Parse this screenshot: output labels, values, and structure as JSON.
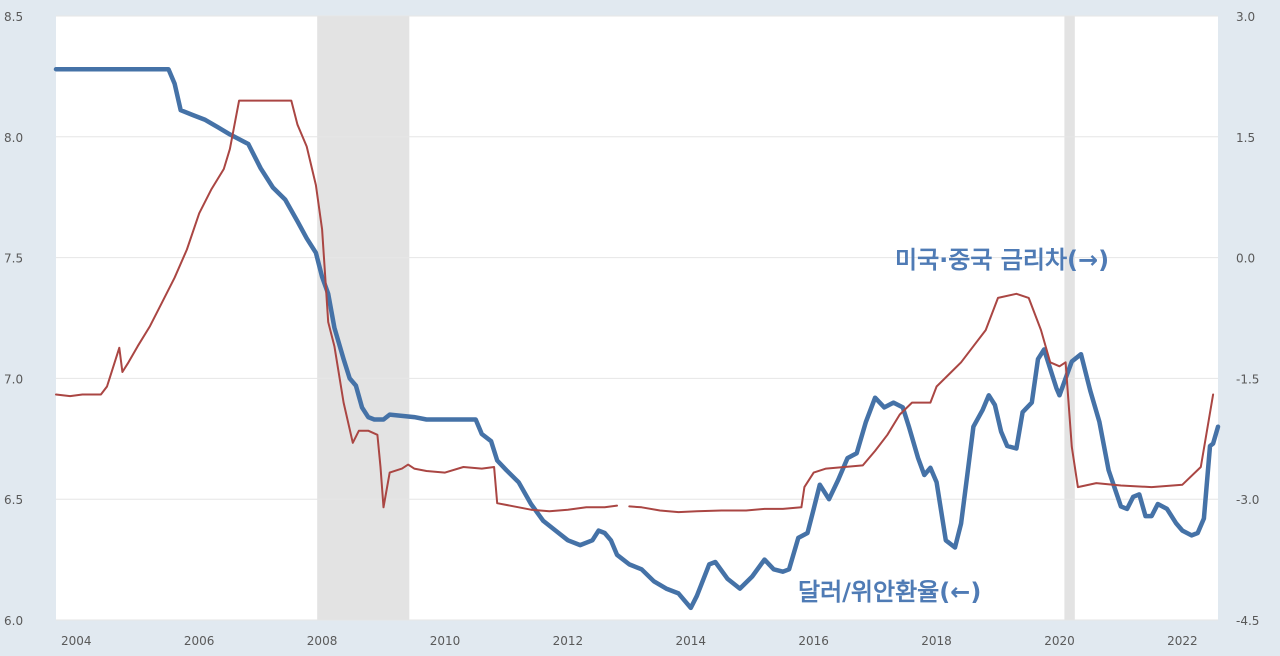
{
  "chart_data": {
    "type": "line",
    "x_axis": {
      "min": 2003.67,
      "max": 2022.58,
      "ticks": [
        "2004",
        "2006",
        "2008",
        "2010",
        "2012",
        "2014",
        "2016",
        "2018",
        "2020",
        "2022"
      ]
    },
    "y_left": {
      "min": 6.0,
      "max": 8.5,
      "ticks": [
        "6.0",
        "6.5",
        "7.0",
        "7.5",
        "8.0",
        "8.5"
      ]
    },
    "y_right": {
      "min": -4.5,
      "max": 3.0,
      "ticks": [
        "-4.5",
        "-3.0",
        "-1.5",
        "0.0",
        "1.5",
        "3.0"
      ]
    },
    "grid": true,
    "recession_bands": [
      [
        2007.92,
        2009.42
      ],
      [
        2020.08,
        2020.25
      ]
    ],
    "annotations": {
      "rate_gap": "미국·중국 금리차(→)",
      "fx": "달러/위안환율(←)"
    },
    "series": [
      {
        "name": "달러/위안환율(←)",
        "axis": "left",
        "color": "#4572a7",
        "points": [
          [
            2003.67,
            8.28
          ],
          [
            2005.5,
            8.28
          ],
          [
            2005.6,
            8.22
          ],
          [
            2005.7,
            8.11
          ],
          [
            2005.9,
            8.09
          ],
          [
            2006.1,
            8.07
          ],
          [
            2006.3,
            8.04
          ],
          [
            2006.5,
            8.01
          ],
          [
            2006.8,
            7.97
          ],
          [
            2007.0,
            7.87
          ],
          [
            2007.2,
            7.79
          ],
          [
            2007.4,
            7.74
          ],
          [
            2007.6,
            7.65
          ],
          [
            2007.75,
            7.58
          ],
          [
            2007.9,
            7.52
          ],
          [
            2008.0,
            7.42
          ],
          [
            2008.1,
            7.35
          ],
          [
            2008.2,
            7.21
          ],
          [
            2008.35,
            7.08
          ],
          [
            2008.45,
            7.0
          ],
          [
            2008.55,
            6.97
          ],
          [
            2008.65,
            6.88
          ],
          [
            2008.75,
            6.84
          ],
          [
            2008.85,
            6.83
          ],
          [
            2009.0,
            6.83
          ],
          [
            2009.1,
            6.85
          ],
          [
            2009.5,
            6.84
          ],
          [
            2009.7,
            6.83
          ],
          [
            2010.5,
            6.83
          ],
          [
            2010.6,
            6.77
          ],
          [
            2010.75,
            6.74
          ],
          [
            2010.85,
            6.66
          ],
          [
            2011.0,
            6.62
          ],
          [
            2011.2,
            6.57
          ],
          [
            2011.4,
            6.48
          ],
          [
            2011.6,
            6.41
          ],
          [
            2011.8,
            6.37
          ],
          [
            2012.0,
            6.33
          ],
          [
            2012.2,
            6.31
          ],
          [
            2012.4,
            6.33
          ],
          [
            2012.5,
            6.37
          ],
          [
            2012.6,
            6.36
          ],
          [
            2012.7,
            6.33
          ],
          [
            2012.8,
            6.27
          ],
          [
            2013.0,
            6.23
          ],
          [
            2013.2,
            6.21
          ],
          [
            2013.4,
            6.16
          ],
          [
            2013.6,
            6.13
          ],
          [
            2013.8,
            6.11
          ],
          [
            2014.0,
            6.05
          ],
          [
            2014.1,
            6.1
          ],
          [
            2014.3,
            6.23
          ],
          [
            2014.4,
            6.24
          ],
          [
            2014.6,
            6.17
          ],
          [
            2014.8,
            6.13
          ],
          [
            2015.0,
            6.18
          ],
          [
            2015.2,
            6.25
          ],
          [
            2015.35,
            6.21
          ],
          [
            2015.5,
            6.2
          ],
          [
            2015.6,
            6.21
          ],
          [
            2015.75,
            6.34
          ],
          [
            2015.9,
            6.36
          ],
          [
            2016.0,
            6.46
          ],
          [
            2016.1,
            6.56
          ],
          [
            2016.25,
            6.5
          ],
          [
            2016.4,
            6.58
          ],
          [
            2016.55,
            6.67
          ],
          [
            2016.7,
            6.69
          ],
          [
            2016.85,
            6.82
          ],
          [
            2017.0,
            6.92
          ],
          [
            2017.15,
            6.88
          ],
          [
            2017.3,
            6.9
          ],
          [
            2017.45,
            6.88
          ],
          [
            2017.55,
            6.8
          ],
          [
            2017.7,
            6.67
          ],
          [
            2017.8,
            6.6
          ],
          [
            2017.9,
            6.63
          ],
          [
            2018.0,
            6.57
          ],
          [
            2018.15,
            6.33
          ],
          [
            2018.3,
            6.3
          ],
          [
            2018.4,
            6.4
          ],
          [
            2018.5,
            6.6
          ],
          [
            2018.6,
            6.8
          ],
          [
            2018.75,
            6.87
          ],
          [
            2018.85,
            6.93
          ],
          [
            2018.95,
            6.89
          ],
          [
            2019.05,
            6.78
          ],
          [
            2019.15,
            6.72
          ],
          [
            2019.3,
            6.71
          ],
          [
            2019.4,
            6.86
          ],
          [
            2019.55,
            6.9
          ],
          [
            2019.65,
            7.08
          ],
          [
            2019.75,
            7.12
          ],
          [
            2019.85,
            7.04
          ],
          [
            2019.95,
            6.96
          ],
          [
            2020.0,
            6.93
          ],
          [
            2020.1,
            7.0
          ],
          [
            2020.2,
            7.07
          ],
          [
            2020.35,
            7.1
          ],
          [
            2020.5,
            6.95
          ],
          [
            2020.65,
            6.82
          ],
          [
            2020.8,
            6.62
          ],
          [
            2021.0,
            6.47
          ],
          [
            2021.1,
            6.46
          ],
          [
            2021.2,
            6.51
          ],
          [
            2021.3,
            6.52
          ],
          [
            2021.4,
            6.43
          ],
          [
            2021.5,
            6.43
          ],
          [
            2021.6,
            6.48
          ],
          [
            2021.75,
            6.46
          ],
          [
            2021.9,
            6.4
          ],
          [
            2022.0,
            6.37
          ],
          [
            2022.15,
            6.35
          ],
          [
            2022.25,
            6.36
          ],
          [
            2022.35,
            6.42
          ],
          [
            2022.45,
            6.72
          ],
          [
            2022.5,
            6.73
          ],
          [
            2022.58,
            6.8
          ]
        ]
      },
      {
        "name": "미국·중국 금리차(→)",
        "axis": "right",
        "color": "#aa4643",
        "segments": [
          [
            [
              2003.67,
              -1.7
            ],
            [
              2003.9,
              -1.72
            ],
            [
              2004.1,
              -1.7
            ],
            [
              2004.4,
              -1.7
            ],
            [
              2004.5,
              -1.6
            ],
            [
              2004.7,
              -1.12
            ],
            [
              2004.75,
              -1.42
            ],
            [
              2004.85,
              -1.3
            ],
            [
              2005.0,
              -1.1
            ],
            [
              2005.2,
              -0.85
            ],
            [
              2005.4,
              -0.55
            ],
            [
              2005.6,
              -0.25
            ],
            [
              2005.8,
              0.1
            ],
            [
              2006.0,
              0.55
            ],
            [
              2006.2,
              0.85
            ],
            [
              2006.4,
              1.1
            ],
            [
              2006.5,
              1.35
            ],
            [
              2006.65,
              1.95
            ],
            [
              2007.0,
              1.95
            ],
            [
              2007.3,
              1.95
            ],
            [
              2007.5,
              1.95
            ],
            [
              2007.6,
              1.65
            ],
            [
              2007.75,
              1.38
            ],
            [
              2007.9,
              0.9
            ],
            [
              2008.0,
              0.35
            ],
            [
              2008.1,
              -0.8
            ],
            [
              2008.2,
              -1.1
            ],
            [
              2008.35,
              -1.8
            ],
            [
              2008.5,
              -2.3
            ],
            [
              2008.6,
              -2.15
            ],
            [
              2008.75,
              -2.15
            ],
            [
              2008.9,
              -2.2
            ],
            [
              2008.95,
              -2.6
            ],
            [
              2009.0,
              -3.1
            ],
            [
              2009.1,
              -2.67
            ],
            [
              2009.3,
              -2.62
            ],
            [
              2009.4,
              -2.57
            ],
            [
              2009.5,
              -2.62
            ],
            [
              2009.7,
              -2.65
            ],
            [
              2010.0,
              -2.67
            ],
            [
              2010.3,
              -2.6
            ],
            [
              2010.6,
              -2.62
            ],
            [
              2010.8,
              -2.6
            ],
            [
              2010.85,
              -3.05
            ],
            [
              2011.2,
              -3.1
            ],
            [
              2011.4,
              -3.13
            ],
            [
              2011.7,
              -3.15
            ],
            [
              2012.0,
              -3.13
            ],
            [
              2012.3,
              -3.1
            ],
            [
              2012.6,
              -3.1
            ],
            [
              2012.8,
              -3.08
            ]
          ],
          [
            [
              2013.0,
              -3.09
            ],
            [
              2013.2,
              -3.1
            ],
            [
              2013.5,
              -3.14
            ],
            [
              2013.8,
              -3.16
            ],
            [
              2014.1,
              -3.15
            ],
            [
              2014.5,
              -3.14
            ],
            [
              2014.9,
              -3.14
            ],
            [
              2015.2,
              -3.12
            ],
            [
              2015.5,
              -3.12
            ],
            [
              2015.8,
              -3.1
            ],
            [
              2015.85,
              -2.85
            ],
            [
              2016.0,
              -2.67
            ],
            [
              2016.2,
              -2.62
            ],
            [
              2016.5,
              -2.6
            ],
            [
              2016.8,
              -2.58
            ],
            [
              2017.0,
              -2.4
            ],
            [
              2017.2,
              -2.2
            ],
            [
              2017.4,
              -1.95
            ],
            [
              2017.6,
              -1.8
            ],
            [
              2017.9,
              -1.8
            ],
            [
              2018.0,
              -1.6
            ],
            [
              2018.2,
              -1.45
            ],
            [
              2018.4,
              -1.3
            ],
            [
              2018.6,
              -1.1
            ],
            [
              2018.8,
              -0.9
            ],
            [
              2019.0,
              -0.5
            ],
            [
              2019.3,
              -0.45
            ],
            [
              2019.5,
              -0.5
            ],
            [
              2019.7,
              -0.9
            ],
            [
              2019.85,
              -1.3
            ],
            [
              2020.0,
              -1.35
            ],
            [
              2020.1,
              -1.3
            ],
            [
              2020.2,
              -2.35
            ],
            [
              2020.3,
              -2.85
            ],
            [
              2020.6,
              -2.8
            ],
            [
              2021.0,
              -2.83
            ],
            [
              2021.5,
              -2.85
            ],
            [
              2022.0,
              -2.82
            ],
            [
              2022.3,
              -2.6
            ],
            [
              2022.5,
              -1.7
            ]
          ]
        ]
      }
    ]
  }
}
